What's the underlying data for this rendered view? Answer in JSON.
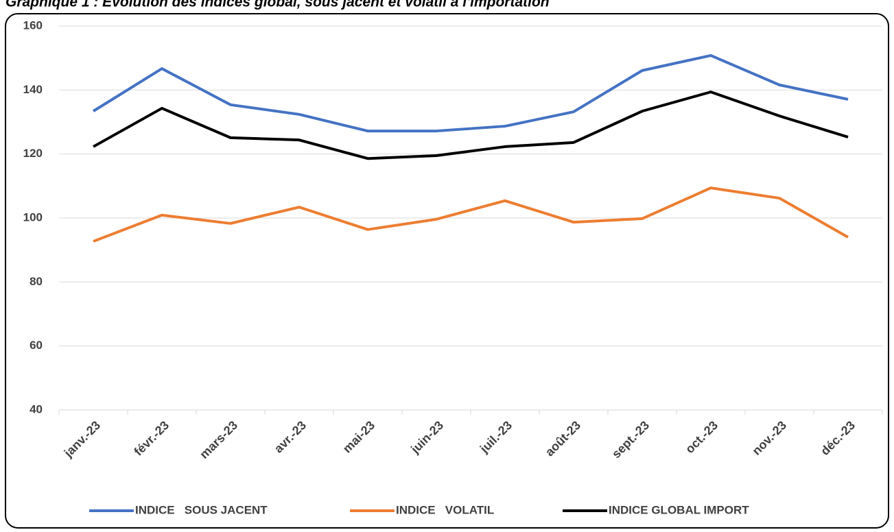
{
  "chart_data": {
    "type": "line",
    "title": "Graphique 1 : Evolution des indices global, sous jacent et volatil à l'importation",
    "categories": [
      "janv.-23",
      "févr.-23",
      "mars-23",
      "avr.-23",
      "mai-23",
      "juin-23",
      "juil.-23",
      "août-23",
      "sept.-23",
      "oct.-23",
      "nov.-23",
      "déc.-23"
    ],
    "series": [
      {
        "name": "INDICE   SOUS JACENT",
        "color": "#4472c4",
        "values": [
          133.4,
          146.7,
          135.4,
          132.4,
          127.2,
          127.2,
          128.7,
          133.2,
          146.1,
          150.8,
          141.6,
          137.1
        ]
      },
      {
        "name": "INDICE   VOLATIL",
        "color": "#ed7d31",
        "values": [
          92.7,
          100.9,
          98.3,
          103.4,
          96.4,
          99.6,
          105.4,
          98.7,
          99.8,
          109.4,
          106.2,
          94.0
        ]
      },
      {
        "name": "INDICE GLOBAL IMPORT",
        "color": "#000000",
        "values": [
          122.3,
          134.3,
          125.1,
          124.4,
          118.6,
          119.5,
          122.3,
          123.6,
          133.4,
          139.4,
          131.9,
          125.3
        ]
      }
    ],
    "ylim": [
      40,
      160
    ],
    "yticks": [
      40,
      60,
      80,
      100,
      120,
      140,
      160
    ],
    "grid": true
  }
}
